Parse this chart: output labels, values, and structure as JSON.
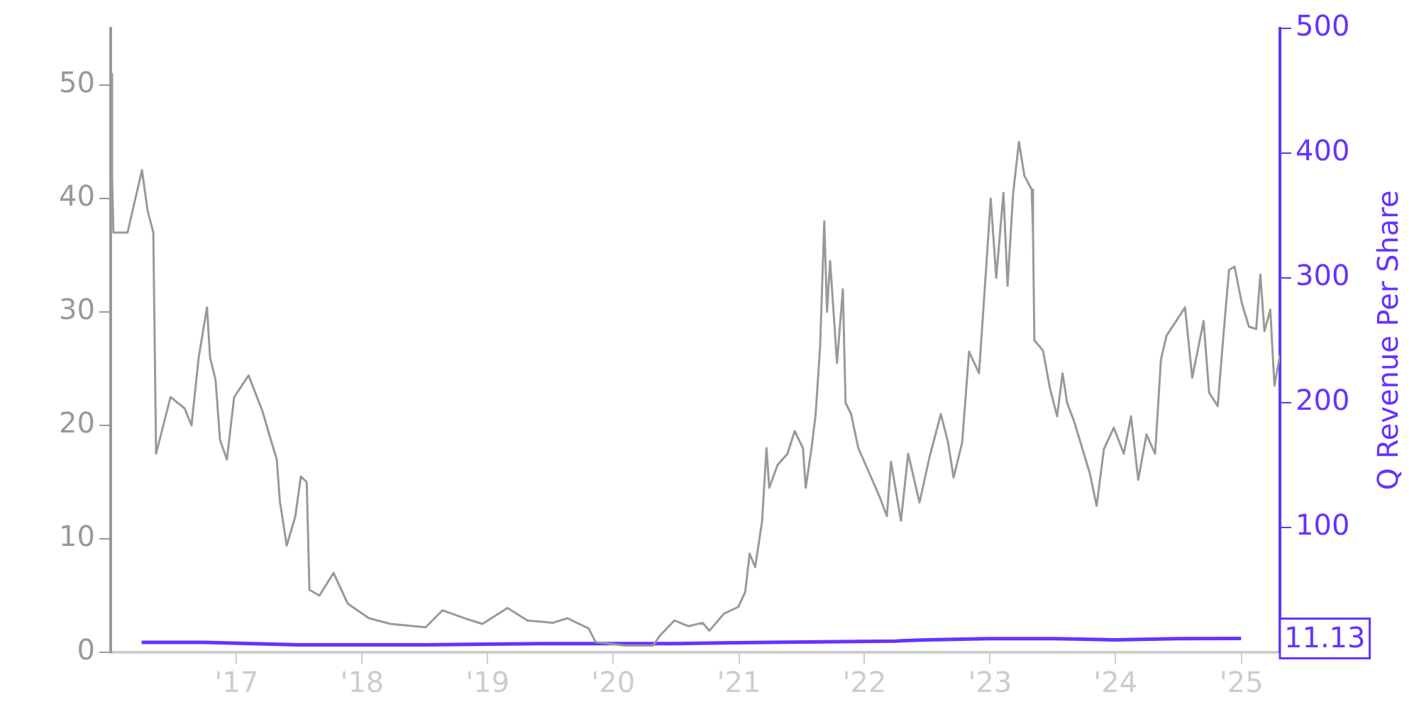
{
  "chart_data": {
    "type": "line",
    "y2label": "Q Revenue Per Share",
    "annotations": [
      "11.13"
    ],
    "xlim": [
      "2016-01-01",
      "2025-04-23"
    ],
    "xticks": [
      {
        "value": "2017-01-01",
        "label": "'17"
      },
      {
        "value": "2018-01-01",
        "label": "'18"
      },
      {
        "value": "2019-01-01",
        "label": "'19"
      },
      {
        "value": "2020-01-01",
        "label": "'20"
      },
      {
        "value": "2021-01-01",
        "label": "'21"
      },
      {
        "value": "2022-01-01",
        "label": "'22"
      },
      {
        "value": "2023-01-01",
        "label": "'23"
      },
      {
        "value": "2024-01-01",
        "label": "'24"
      },
      {
        "value": "2025-01-01",
        "label": "'25"
      }
    ],
    "ylim": [
      0,
      55
    ],
    "yticks": [
      0,
      10,
      20,
      30,
      40,
      50
    ],
    "y2lim": [
      0,
      500
    ],
    "y2ticks": [
      100,
      200,
      300,
      400,
      500
    ],
    "grid": false,
    "legend": false,
    "marker": "none",
    "series": [
      {
        "color": "#999999",
        "x": [
          "2016-01-01",
          "2016-01-05",
          "2016-01-09",
          "2016-02-19",
          "2016-04-01",
          "2016-04-17",
          "2016-05-04",
          "2016-05-12",
          "2016-06-23",
          "2016-08-03",
          "2016-08-23",
          "2016-09-13",
          "2016-10-07",
          "2016-10-16",
          "2016-11-01",
          "2016-11-14",
          "2016-12-04",
          "2016-12-25",
          "2017-02-05",
          "2017-03-18",
          "2017-04-08",
          "2017-04-28",
          "2017-05-07",
          "2017-05-27",
          "2017-06-21",
          "2017-07-07",
          "2017-07-24",
          "2017-08-01",
          "2017-08-30",
          "2017-10-10",
          "2017-11-20",
          "2018-01-21",
          "2018-03-25",
          "2018-07-05",
          "2018-08-23",
          "2018-11-05",
          "2018-12-17",
          "2019-02-28",
          "2019-04-27",
          "2019-07-10",
          "2019-08-21",
          "2019-10-22",
          "2019-11-11",
          "2020-02-03",
          "2020-04-26",
          "2020-05-17",
          "2020-06-27",
          "2020-08-07",
          "2020-09-17",
          "2020-10-07",
          "2020-11-18",
          "2020-12-30",
          "2021-01-19",
          "2021-02-01",
          "2021-02-17",
          "2021-03-09",
          "2021-03-22",
          "2021-03-30",
          "2021-04-23",
          "2021-05-22",
          "2021-06-12",
          "2021-07-06",
          "2021-07-14",
          "2021-07-31",
          "2021-08-12",
          "2021-08-25",
          "2021-09-06",
          "2021-09-14",
          "2021-09-23",
          "2021-10-13",
          "2021-10-30",
          "2021-11-07",
          "2021-11-23",
          "2021-12-14",
          "2022-01-12",
          "2022-02-14",
          "2022-03-07",
          "2022-03-19",
          "2022-04-17",
          "2022-05-08",
          "2022-06-10",
          "2022-07-09",
          "2022-08-11",
          "2022-09-01",
          "2022-09-17",
          "2022-10-12",
          "2022-11-01",
          "2022-11-30",
          "2022-12-21",
          "2023-01-03",
          "2023-01-19",
          "2023-02-09",
          "2023-02-21",
          "2023-03-09",
          "2023-03-26",
          "2023-04-11",
          "2023-05-02",
          "2023-05-06",
          "2023-05-10",
          "2023-06-04",
          "2023-06-24",
          "2023-07-15",
          "2023-07-31",
          "2023-08-13",
          "2023-09-02",
          "2023-09-23",
          "2023-10-18",
          "2023-11-07",
          "2023-11-28",
          "2023-12-27",
          "2024-01-25",
          "2024-02-15",
          "2024-03-07",
          "2024-03-31",
          "2024-04-25",
          "2024-05-12",
          "2024-05-28",
          "2024-07-21",
          "2024-08-11",
          "2024-09-13",
          "2024-09-29",
          "2024-10-24",
          "2024-11-09",
          "2024-11-26",
          "2024-12-12",
          "2025-01-02",
          "2025-01-23",
          "2025-02-13",
          "2025-02-25",
          "2025-03-09",
          "2025-03-26",
          "2025-04-07",
          "2025-04-23"
        ],
        "values": [
          51,
          42,
          37,
          37,
          42.5,
          39,
          37,
          17.5,
          22.5,
          21.5,
          20,
          26,
          30.4,
          26,
          24,
          18.7,
          17,
          22.5,
          24.4,
          21.2,
          19,
          17,
          13.3,
          9.4,
          12,
          15.5,
          15,
          5.5,
          5,
          7,
          4.3,
          3,
          2.5,
          2.2,
          3.7,
          2.9,
          2.5,
          3.9,
          2.8,
          2.6,
          3,
          2.1,
          0.9,
          0.6,
          0.6,
          1.5,
          2.8,
          2.3,
          2.6,
          1.9,
          3.4,
          4,
          5.3,
          8.7,
          7.5,
          11.5,
          18,
          14.5,
          16.5,
          17.5,
          19.5,
          18,
          14.5,
          18,
          21,
          27,
          38,
          30,
          34.5,
          25.5,
          32,
          22,
          21,
          18,
          16,
          13.7,
          12,
          16.8,
          11.6,
          17.5,
          13.2,
          17.2,
          21,
          18.5,
          15.4,
          18.5,
          26.5,
          24.6,
          34,
          40,
          33,
          40.5,
          32.3,
          40.4,
          45,
          42,
          40.8,
          37,
          27.5,
          26.6,
          23.3,
          20.8,
          24.6,
          22,
          20.4,
          18.3,
          15.8,
          12.9,
          17.9,
          19.8,
          17.5,
          20.8,
          15.2,
          19.2,
          17.5,
          25.8,
          27.9,
          30.4,
          24.2,
          29.2,
          22.9,
          21.7,
          27.7,
          33.7,
          34,
          30.8,
          28.7,
          28.5,
          33.3,
          28.3,
          30.2,
          23.5,
          26.2
        ]
      },
      {
        "color": "#6633ff",
        "axis": "y2",
        "x": [
          "2016-03-31",
          "2016-09-30",
          "2017-06-30",
          "2018-06-30",
          "2019-06-30",
          "2020-06-30",
          "2021-03-31",
          "2022-03-31",
          "2022-06-30",
          "2022-12-31",
          "2023-06-30",
          "2023-12-31",
          "2024-06-30",
          "2024-12-31"
        ],
        "values": [
          8,
          8,
          6,
          6,
          7,
          7,
          8,
          9,
          10,
          11,
          11,
          10,
          11,
          11.13
        ]
      }
    ]
  }
}
